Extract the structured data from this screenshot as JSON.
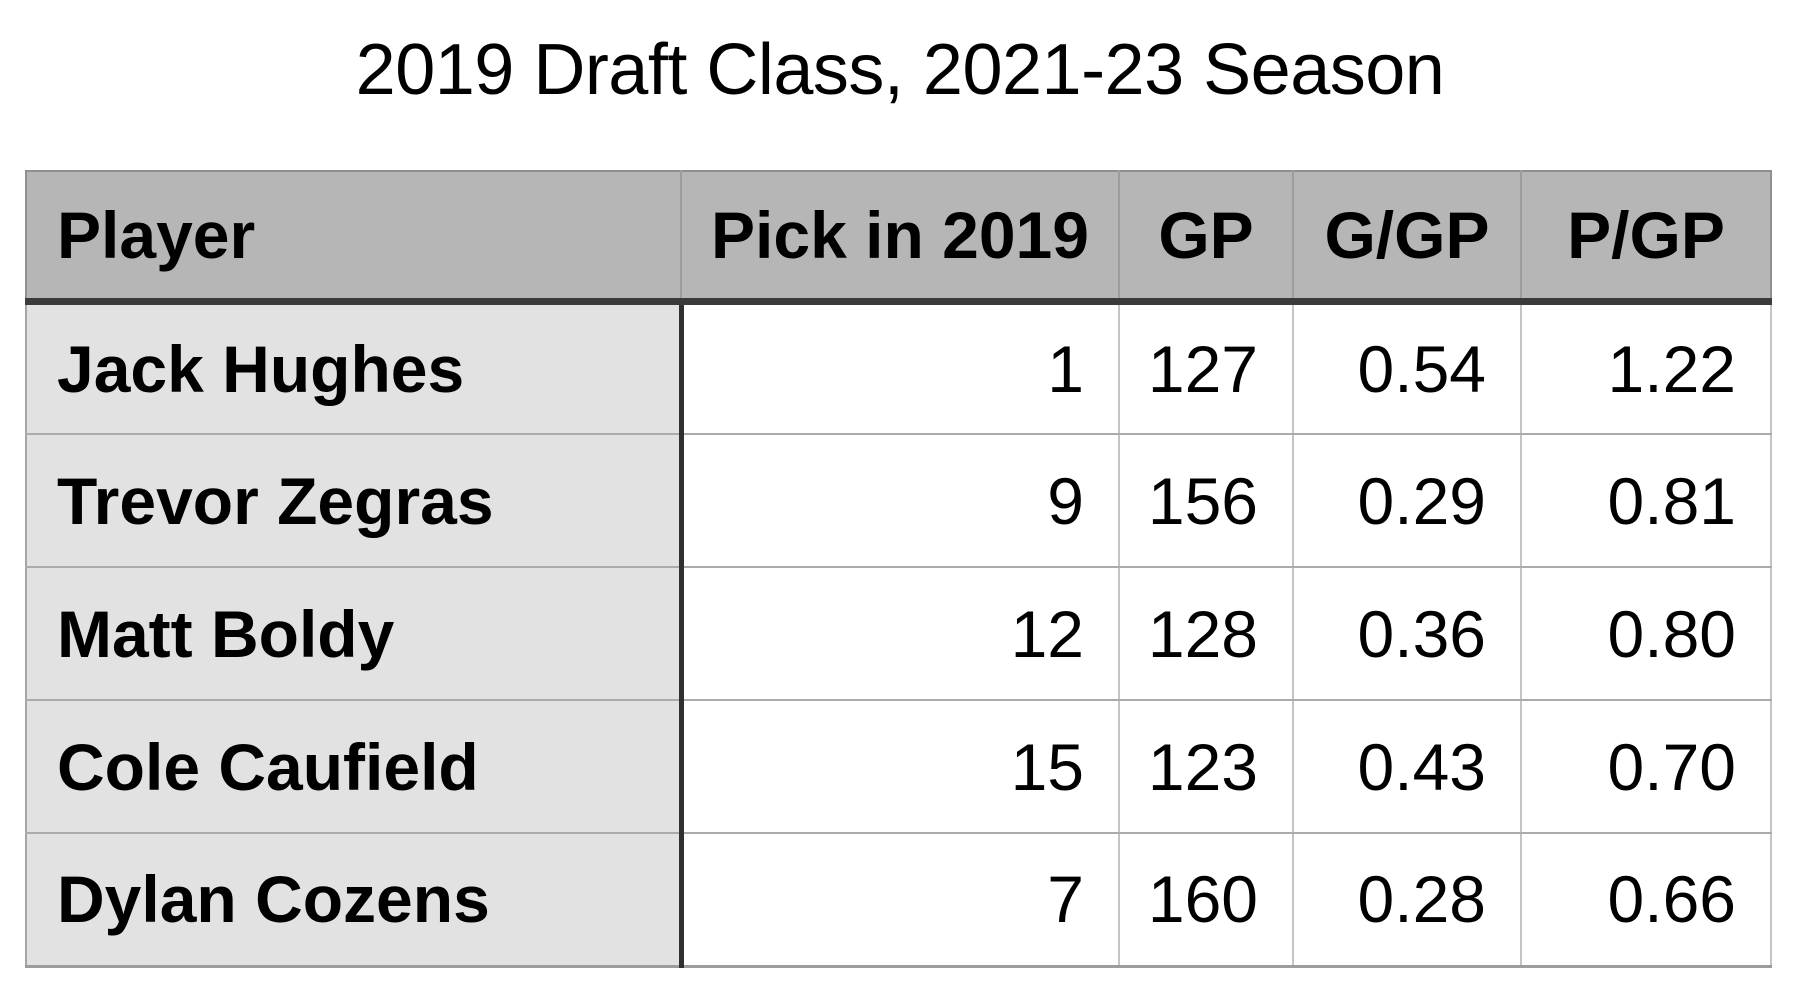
{
  "title": "2019 Draft Class, 2021-23 Season",
  "table": {
    "columns": [
      {
        "label": "Player"
      },
      {
        "label": "Pick in 2019"
      },
      {
        "label": "GP"
      },
      {
        "label": "G/GP"
      },
      {
        "label": "P/GP"
      }
    ],
    "rows": [
      {
        "player": "Jack Hughes",
        "pick": "1",
        "gp": "127",
        "g_per_gp": "0.54",
        "p_per_gp": "1.22"
      },
      {
        "player": "Trevor Zegras",
        "pick": "9",
        "gp": "156",
        "g_per_gp": "0.29",
        "p_per_gp": "0.81"
      },
      {
        "player": "Matt Boldy",
        "pick": "12",
        "gp": "128",
        "g_per_gp": "0.36",
        "p_per_gp": "0.80"
      },
      {
        "player": "Cole Caufield",
        "pick": "15",
        "gp": "123",
        "g_per_gp": "0.43",
        "p_per_gp": "0.70"
      },
      {
        "player": "Dylan Cozens",
        "pick": "7",
        "gp": "160",
        "g_per_gp": "0.28",
        "p_per_gp": "0.66"
      }
    ]
  },
  "colors": {
    "background": "#ffffff",
    "header_fill": "#b6b6b6",
    "player_column_fill": "#e2e2e2",
    "thick_rule": "#3b3b3b",
    "thin_grid": "#ababab",
    "text": "#000000"
  },
  "chart_data": {
    "type": "table",
    "title": "2019 Draft Class, 2021-23 Season",
    "columns": [
      "Player",
      "Pick in 2019",
      "GP",
      "G/GP",
      "P/GP"
    ],
    "rows": [
      [
        "Jack Hughes",
        1,
        127,
        0.54,
        1.22
      ],
      [
        "Trevor Zegras",
        9,
        156,
        0.29,
        0.81
      ],
      [
        "Matt Boldy",
        12,
        128,
        0.36,
        0.8
      ],
      [
        "Cole Caufield",
        15,
        123,
        0.43,
        0.7
      ],
      [
        "Dylan Cozens",
        7,
        160,
        0.28,
        0.66
      ]
    ],
    "layout_hints": {
      "header_align": "first column left, numeric headers centered",
      "data_align": "first column left, numeric cells right",
      "grid": "on"
    }
  }
}
